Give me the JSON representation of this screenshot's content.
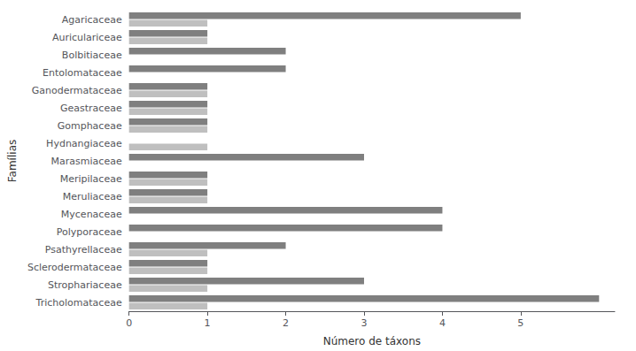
{
  "chart_data": {
    "type": "bar",
    "orientation": "horizontal",
    "xlabel": "Número de táxons",
    "ylabel": "Famílias",
    "categories": [
      "Agaricaceae",
      "Auriculariceae",
      "Bolbitiaceae",
      "Entolomataceae",
      "Ganodermataceae",
      "Geastraceae",
      "Gomphaceae",
      "Hydnangiaceae",
      "Marasmiaceae",
      "Meripilaceae",
      "Meruliaceae",
      "Mycenaceae",
      "Polyporaceae",
      "Psathyrellaceae",
      "Sclerodermataceae",
      "Strophariaceae",
      "Tricholomataceae"
    ],
    "series": [
      {
        "color": "#7f7f7f",
        "values": [
          5,
          1,
          2,
          2,
          1,
          1,
          1,
          0,
          3,
          1,
          1,
          4,
          4,
          2,
          1,
          3,
          6
        ]
      },
      {
        "color": "#bfbfbf",
        "values": [
          1,
          1,
          0,
          0,
          1,
          1,
          1,
          1,
          0,
          1,
          1,
          0,
          0,
          1,
          1,
          1,
          1
        ]
      }
    ],
    "xlim": [
      0,
      6.2
    ],
    "xticks": [
      0,
      1,
      2,
      3,
      4,
      5
    ],
    "grid": false
  }
}
